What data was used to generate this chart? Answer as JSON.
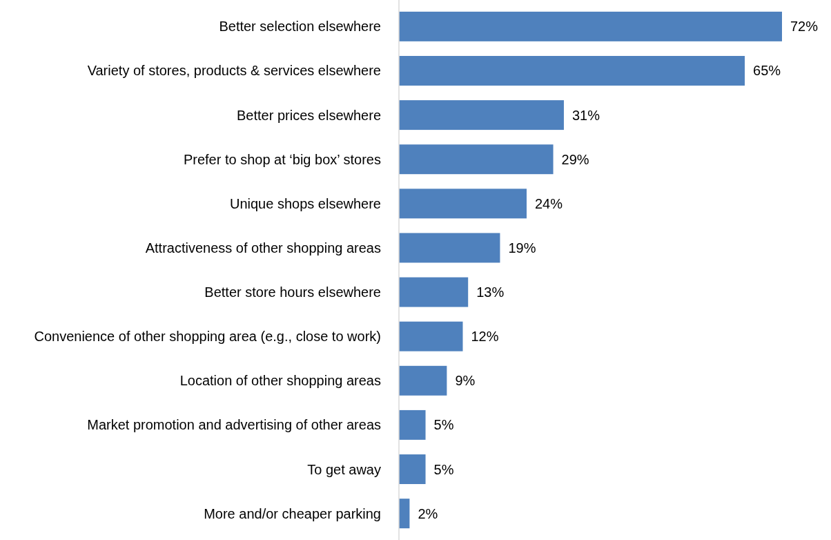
{
  "chart_data": {
    "type": "bar",
    "orientation": "horizontal",
    "categories": [
      "Better selection elsewhere",
      "Variety of stores, products & services elsewhere",
      "Better prices elsewhere",
      "Prefer to shop at ‘big box’ stores",
      "Unique shops elsewhere",
      "Attractiveness of other shopping areas",
      "Better store hours elsewhere",
      "Convenience of other shopping area (e.g., close to work)",
      "Location of other shopping areas",
      "Market promotion and advertising of other areas",
      "To get away",
      "More and/or cheaper parking"
    ],
    "values": [
      72,
      65,
      31,
      29,
      24,
      19,
      13,
      12,
      9,
      5,
      5,
      2
    ],
    "value_labels": [
      "72%",
      "65%",
      "31%",
      "29%",
      "24%",
      "19%",
      "13%",
      "12%",
      "9%",
      "5%",
      "5%",
      "2%"
    ],
    "color": "#4f81bd"
  }
}
